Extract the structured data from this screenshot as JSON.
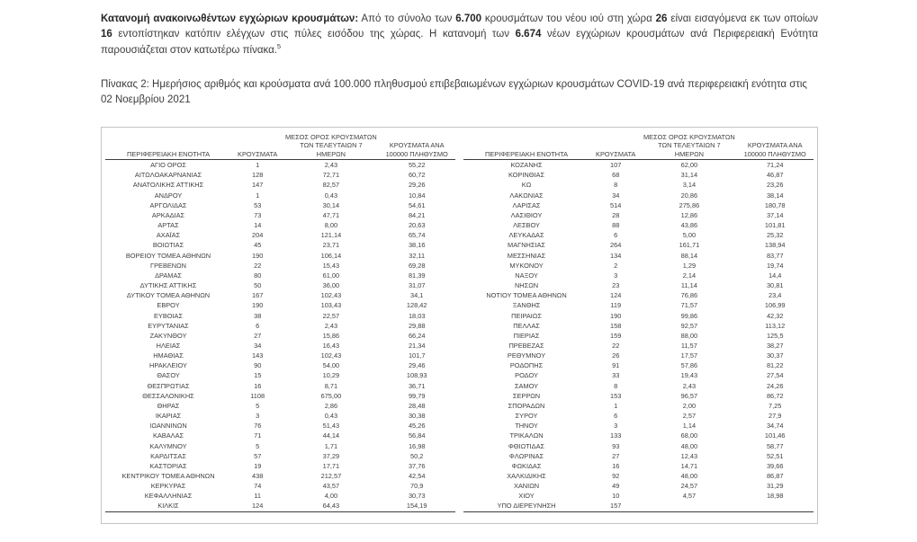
{
  "intro": {
    "segments": [
      "Κατανομή ανακοινωθέντων εγχώριων κρουσμάτων:",
      " Από το σύνολο των ",
      "6.700",
      " κρουσμάτων του νέου ιού στη χώρα ",
      "26",
      " είναι εισαγόμενα εκ των οποίων ",
      "16",
      " εντοπίστηκαν κατόπιν ελέγχων στις πύλες εισόδου της χώρας. Η κατανομή των ",
      "6.674",
      " νέων εγχώριων κρουσμάτων ανά Περιφερειακή Ενότητα παρουσιάζεται στον κατωτέρω πίνακα.",
      "5"
    ]
  },
  "caption": "Πίνακας 2:  Ημερήσιος αριθμός και κρούσματα ανά 100.000 πληθυσμού επιβεβαιωμένων εγχώριων κρουσμάτων COVID-19 ανά περιφερειακή ενότητα στις 02 Νοεμβρίου 2021",
  "table": {
    "headers": [
      "ΠΕΡΙΦΕΡΕΙΑΚΗ ΕΝΟΤΗΤΑ",
      "ΚΡΟΥΣΜΑΤΑ",
      "ΜΕΣΟΣ ΟΡΟΣ ΚΡΟΥΣΜΑΤΩΝ ΤΩΝ ΤΕΛΕΥΤΑΙΩΝ 7 ΗΜΕΡΩΝ",
      "ΚΡΟΥΣΜΑΤΑ ΑΝΑ 100000 ΠΛΗΘΥΣΜΟ"
    ],
    "left_rows": [
      [
        "ΑΓΙΟ ΟΡΟΣ",
        "1",
        "2,43",
        "55,22"
      ],
      [
        "ΑΙΤΩΛΟΑΚΑΡΝΑΝΙΑΣ",
        "128",
        "72,71",
        "60,72"
      ],
      [
        "ΑΝΑΤΟΛΙΚΗΣ ΑΤΤΙΚΗΣ",
        "147",
        "82,57",
        "29,26"
      ],
      [
        "ΑΝΔΡΟΥ",
        "1",
        "0,43",
        "10,84"
      ],
      [
        "ΑΡΓΟΛΙΔΑΣ",
        "53",
        "30,14",
        "54,61"
      ],
      [
        "ΑΡΚΑΔΙΑΣ",
        "73",
        "47,71",
        "84,21"
      ],
      [
        "ΑΡΤΑΣ",
        "14",
        "8,00",
        "20,63"
      ],
      [
        "ΑΧΑΪΑΣ",
        "204",
        "121,14",
        "65,74"
      ],
      [
        "ΒΟΙΩΤΙΑΣ",
        "45",
        "23,71",
        "38,16"
      ],
      [
        "ΒΟΡΕΙΟΥ ΤΟΜΕΑ ΑΘΗΝΩΝ",
        "190",
        "106,14",
        "32,11"
      ],
      [
        "ΓΡΕΒΕΝΩΝ",
        "22",
        "15,43",
        "69,28"
      ],
      [
        "ΔΡΑΜΑΣ",
        "80",
        "61,00",
        "81,39"
      ],
      [
        "ΔΥΤΙΚΗΣ ΑΤΤΙΚΗΣ",
        "50",
        "36,00",
        "31,07"
      ],
      [
        "ΔΥΤΙΚΟΥ ΤΟΜΕΑ ΑΘΗΝΩΝ",
        "167",
        "102,43",
        "34,1"
      ],
      [
        "ΕΒΡΟΥ",
        "190",
        "103,43",
        "128,42"
      ],
      [
        "ΕΥΒΟΙΑΣ",
        "38",
        "22,57",
        "18,03"
      ],
      [
        "ΕΥΡΥΤΑΝΙΑΣ",
        "6",
        "2,43",
        "29,88"
      ],
      [
        "ΖΑΚΥΝΘΟΥ",
        "27",
        "15,86",
        "66,24"
      ],
      [
        "ΗΛΕΙΑΣ",
        "34",
        "16,43",
        "21,34"
      ],
      [
        "ΗΜΑΘΙΑΣ",
        "143",
        "102,43",
        "101,7"
      ],
      [
        "ΗΡΑΚΛΕΙΟΥ",
        "90",
        "54,00",
        "29,46"
      ],
      [
        "ΘΑΣΟΥ",
        "15",
        "10,29",
        "108,93"
      ],
      [
        "ΘΕΣΠΡΩΤΙΑΣ",
        "16",
        "8,71",
        "36,71"
      ],
      [
        "ΘΕΣΣΑΛΟΝΙΚΗΣ",
        "1108",
        "675,00",
        "99,79"
      ],
      [
        "ΘΗΡΑΣ",
        "5",
        "2,86",
        "28,48"
      ],
      [
        "ΙΚΑΡΙΑΣ",
        "3",
        "0,43",
        "30,38"
      ],
      [
        "ΙΩΑΝΝΙΝΩΝ",
        "76",
        "51,43",
        "45,26"
      ],
      [
        "ΚΑΒΑΛΑΣ",
        "71",
        "44,14",
        "56,84"
      ],
      [
        "ΚΑΛΥΜΝΟΥ",
        "5",
        "1,71",
        "16,98"
      ],
      [
        "ΚΑΡΔΙΤΣΑΣ",
        "57",
        "37,29",
        "50,2"
      ],
      [
        "ΚΑΣΤΟΡΙΑΣ",
        "19",
        "17,71",
        "37,76"
      ],
      [
        "ΚΕΝΤΡΙΚΟΥ ΤΟΜΕΑ ΑΘΗΝΩΝ",
        "438",
        "212,57",
        "42,54"
      ],
      [
        "ΚΕΡΚΥΡΑΣ",
        "74",
        "43,57",
        "70,9"
      ],
      [
        "ΚΕΦΑΛΛΗΝΙΑΣ",
        "11",
        "4,00",
        "30,73"
      ],
      [
        "ΚΙΛΚΙΣ",
        "124",
        "64,43",
        "154,19"
      ]
    ],
    "right_rows": [
      [
        "ΚΟΖΑΝΗΣ",
        "107",
        "62,00",
        "71,24"
      ],
      [
        "ΚΟΡΙΝΘΙΑΣ",
        "68",
        "31,14",
        "46,87"
      ],
      [
        "ΚΩ",
        "8",
        "3,14",
        "23,26"
      ],
      [
        "ΛΑΚΩΝΙΑΣ",
        "34",
        "20,86",
        "38,14"
      ],
      [
        "ΛΑΡΙΣΑΣ",
        "514",
        "275,86",
        "180,78"
      ],
      [
        "ΛΑΣΙΘΙΟΥ",
        "28",
        "12,86",
        "37,14"
      ],
      [
        "ΛΕΣΒΟΥ",
        "88",
        "43,86",
        "101,81"
      ],
      [
        "ΛΕΥΚΑΔΑΣ",
        "6",
        "5,00",
        "25,32"
      ],
      [
        "ΜΑΓΝΗΣΙΑΣ",
        "264",
        "161,71",
        "138,94"
      ],
      [
        "ΜΕΣΣΗΝΙΑΣ",
        "134",
        "88,14",
        "83,77"
      ],
      [
        "ΜΥΚΟΝΟΥ",
        "2",
        "1,29",
        "19,74"
      ],
      [
        "ΝΑΞΟΥ",
        "3",
        "2,14",
        "14,4"
      ],
      [
        "ΝΗΣΩΝ",
        "23",
        "11,14",
        "30,81"
      ],
      [
        "ΝΟΤΙΟΥ ΤΟΜΕΑ ΑΘΗΝΩΝ",
        "124",
        "76,86",
        "23,4"
      ],
      [
        "ΞΑΝΘΗΣ",
        "119",
        "71,57",
        "106,99"
      ],
      [
        "ΠΕΙΡΑΙΩΣ",
        "190",
        "99,86",
        "42,32"
      ],
      [
        "ΠΕΛΛΑΣ",
        "158",
        "92,57",
        "113,12"
      ],
      [
        "ΠΙΕΡΙΑΣ",
        "159",
        "88,00",
        "125,5"
      ],
      [
        "ΠΡΕΒΕΖΑΣ",
        "22",
        "11,57",
        "38,27"
      ],
      [
        "ΡΕΘΥΜΝΟΥ",
        "26",
        "17,57",
        "30,37"
      ],
      [
        "ΡΟΔΟΠΗΣ",
        "91",
        "57,86",
        "81,22"
      ],
      [
        "ΡΟΔΟΥ",
        "33",
        "19,43",
        "27,54"
      ],
      [
        "ΣΑΜΟΥ",
        "8",
        "2,43",
        "24,26"
      ],
      [
        "ΣΕΡΡΩΝ",
        "153",
        "96,57",
        "86,72"
      ],
      [
        "ΣΠΟΡΑΔΩΝ",
        "1",
        "2,00",
        "7,25"
      ],
      [
        "ΣΥΡΟΥ",
        "6",
        "2,57",
        "27,9"
      ],
      [
        "ΤΗΝΟΥ",
        "3",
        "1,14",
        "34,74"
      ],
      [
        "ΤΡΙΚΑΛΩΝ",
        "133",
        "68,00",
        "101,46"
      ],
      [
        "ΦΘΙΩΤΙΔΑΣ",
        "93",
        "48,00",
        "58,77"
      ],
      [
        "ΦΛΩΡΙΝΑΣ",
        "27",
        "12,43",
        "52,51"
      ],
      [
        "ΦΩΚΙΔΑΣ",
        "16",
        "14,71",
        "39,66"
      ],
      [
        "ΧΑΛΚΙΔΙΚΗΣ",
        "92",
        "48,00",
        "86,87"
      ],
      [
        "ΧΑΝΙΩΝ",
        "49",
        "24,57",
        "31,29"
      ],
      [
        "ΧΙΟΥ",
        "10",
        "4,57",
        "18,98"
      ],
      [
        "ΥΠΟ ΔΙΕΡΕΥΝΗΣΗ",
        "157",
        "",
        ""
      ]
    ]
  }
}
